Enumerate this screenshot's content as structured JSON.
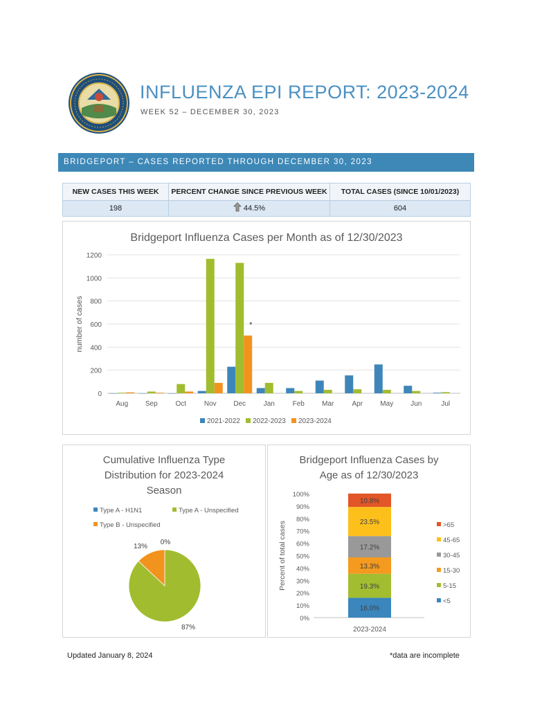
{
  "header": {
    "title": "INFLUENZA EPI REPORT: 2023-2024",
    "subtitle": "WEEK 52 – DECEMBER 30, 2023"
  },
  "banner": {
    "text": "BRIDGEPORT – CASES REPORTED THROUGH DECEMBER 30, 2023"
  },
  "stats": {
    "new_cases_label": "NEW CASES THIS WEEK",
    "new_cases_value": "198",
    "pct_change_label": "PERCENT CHANGE SINCE PREVIOUS WEEK",
    "pct_change_value": "44.5%",
    "total_label": "TOTAL CASES (SINCE 10/01/2023)",
    "total_value": "604"
  },
  "colors": {
    "accent": "#3d88b7",
    "title": "#4a90c2",
    "s2021": "#3e86b9",
    "s2022": "#a1bd2f",
    "s2023": "#f2931e",
    "age_gt65": "#e35627",
    "age_45_65": "#fdc01a",
    "age_30_45": "#999999",
    "age_15_30": "#f39a1f",
    "age_5_15": "#a3bd31",
    "age_lt5": "#3a86bd"
  },
  "chart_data": [
    {
      "type": "bar",
      "title": "Bridgeport Influenza Cases per Month as of 12/30/2023",
      "xlabel": "",
      "ylabel": "number of cases",
      "ylim": [
        0,
        1200
      ],
      "yticks": [
        "0",
        "200",
        "400",
        "600",
        "800",
        "1000",
        "1200"
      ],
      "categories": [
        "Aug",
        "Sep",
        "Oct",
        "Nov",
        "Dec",
        "Jan",
        "Feb",
        "Mar",
        "Apr",
        "May",
        "Jun",
        "Jul"
      ],
      "series": [
        {
          "name": "2021-2022",
          "values": [
            0,
            0,
            0,
            20,
            230,
            45,
            45,
            110,
            155,
            250,
            65,
            5
          ]
        },
        {
          "name": "2022-2023",
          "values": [
            5,
            15,
            80,
            1165,
            1130,
            90,
            20,
            30,
            35,
            30,
            20,
            10
          ]
        },
        {
          "name": "2023-2024",
          "values": [
            8,
            5,
            15,
            90,
            500,
            null,
            null,
            null,
            null,
            null,
            null,
            null
          ]
        }
      ],
      "annotations": [
        {
          "category": "Dec",
          "series": "2023-2024",
          "text": "*"
        }
      ],
      "legend": "bottom",
      "grid": true
    },
    {
      "type": "pie",
      "title_lines": [
        "Cumulative Influenza Type",
        "Distribution for 2023-2024",
        "Season"
      ],
      "labels": [
        "Type A - H1N1",
        "Type A - Unspecified",
        "Type B - Unspecified"
      ],
      "values": [
        0,
        87,
        13
      ],
      "data_labels": [
        "0%",
        "87%",
        "13%"
      ],
      "legend": "top"
    },
    {
      "type": "bar",
      "stacked": true,
      "title_lines": [
        "Bridgeport Influenza Cases by",
        "Age as of 12/30/2023"
      ],
      "ylabel": "Percent of total cases",
      "ylim": [
        0,
        100
      ],
      "yticks": [
        "0%",
        "10%",
        "20%",
        "30%",
        "40%",
        "50%",
        "60%",
        "70%",
        "80%",
        "90%",
        "100%"
      ],
      "categories": [
        "2023-2024"
      ],
      "series": [
        {
          "name": "<5",
          "values": [
            16.0
          ],
          "label": "16.0%"
        },
        {
          "name": "5-15",
          "values": [
            19.3
          ],
          "label": "19.3%"
        },
        {
          "name": "15-30",
          "values": [
            13.3
          ],
          "label": "13.3%"
        },
        {
          "name": "30-45",
          "values": [
            17.2
          ],
          "label": "17.2%"
        },
        {
          "name": "45-65",
          "values": [
            23.5
          ],
          "label": "23.5%"
        },
        {
          "name": ">65",
          "values": [
            10.8
          ],
          "label": "10.8%"
        }
      ],
      "legend": "right"
    }
  ],
  "footer": {
    "updated": "Updated January 8, 2024",
    "note": "*data are incomplete"
  },
  "icons": {
    "seal": "state-seal-icon",
    "arrow": "arrow-up-icon"
  }
}
